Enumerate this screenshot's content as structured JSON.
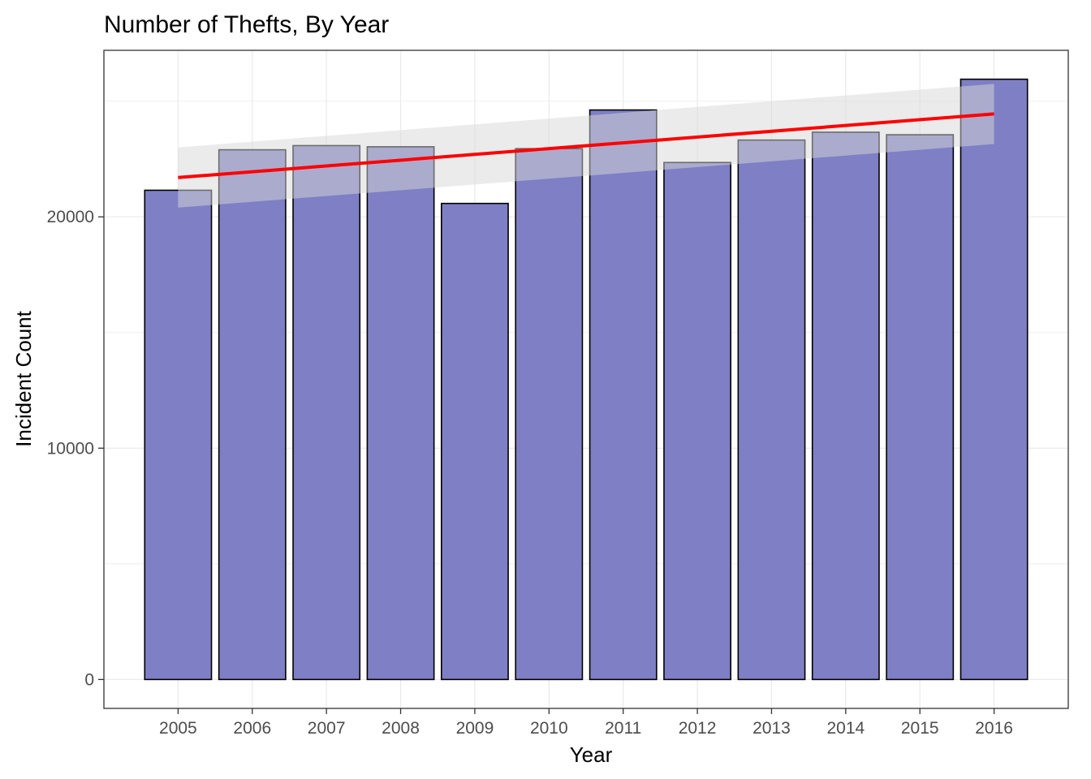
{
  "chart_data": {
    "type": "bar",
    "title": "Number of Thefts, By Year",
    "xlabel": "Year",
    "ylabel": "Incident Count",
    "categories": [
      "2005",
      "2006",
      "2007",
      "2008",
      "2009",
      "2010",
      "2011",
      "2012",
      "2013",
      "2014",
      "2015",
      "2016"
    ],
    "series": [
      {
        "name": "Incident Count",
        "values": [
          21150,
          22900,
          23080,
          23030,
          20580,
          22950,
          24620,
          22350,
          23320,
          23660,
          23550,
          25950
        ]
      }
    ],
    "trend": {
      "type": "linear",
      "start": {
        "x": "2005",
        "y": 21700,
        "ci_low": 20400,
        "ci_high": 23000
      },
      "end": {
        "x": "2016",
        "y": 24450,
        "ci_low": 23150,
        "ci_high": 25750
      }
    },
    "yticks": [
      0,
      10000,
      20000
    ],
    "ylim": [
      -1250,
      27200
    ],
    "grid": true,
    "colors": {
      "bar_fill": "#7f7fc5",
      "bar_stroke": "#000000",
      "trend_line": "#ff0000",
      "confidence_band": "rgba(215,215,215,0.5)",
      "grid": "#ebebeb",
      "panel_border": "#333333"
    }
  }
}
